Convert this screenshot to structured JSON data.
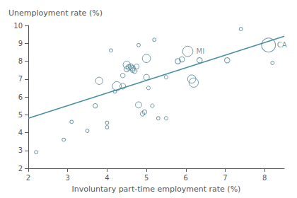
{
  "chart_data": {
    "type": "scatter",
    "xlabel": "Involuntary part-time employment rate (%)",
    "ylabel": "Unemployment rate (%)",
    "xlim": [
      2,
      8.5
    ],
    "ylim": [
      2,
      10
    ],
    "xticks": [
      2,
      3,
      4,
      5,
      6,
      7,
      8
    ],
    "yticks": [
      2,
      3,
      4,
      5,
      6,
      7,
      8,
      9,
      10
    ],
    "grid": false,
    "series": [
      {
        "type": "scatter",
        "marker": "circle",
        "color": "#4a8090",
        "x": [
          2.2,
          2.9,
          3.1,
          3.5,
          3.7,
          3.8,
          4.0,
          4.0,
          4.1,
          4.2,
          4.25,
          4.4,
          4.4,
          4.5,
          4.5,
          4.55,
          4.6,
          4.65,
          4.65,
          4.7,
          4.75,
          4.8,
          4.8,
          4.9,
          4.95,
          5.0,
          5.0,
          5.05,
          5.15,
          5.2,
          5.3,
          5.5,
          5.5,
          5.8,
          5.9,
          6.05,
          6.15,
          6.2,
          6.35,
          7.05,
          7.4,
          8.1,
          8.2
        ],
        "values": [
          2.9,
          3.6,
          4.6,
          4.1,
          5.5,
          6.9,
          4.55,
          4.3,
          8.6,
          6.3,
          6.6,
          6.6,
          7.2,
          7.8,
          7.55,
          7.65,
          7.7,
          7.6,
          7.5,
          7.45,
          7.7,
          8.9,
          5.55,
          5.05,
          5.15,
          7.1,
          8.15,
          6.5,
          5.5,
          9.2,
          4.8,
          7.1,
          4.8,
          8.0,
          8.1,
          8.55,
          7.0,
          6.8,
          8.05,
          8.05,
          9.8,
          8.9,
          7.9
        ],
        "sizes": [
          12,
          12,
          12,
          12,
          20,
          55,
          12,
          12,
          12,
          12,
          85,
          35,
          22,
          55,
          30,
          30,
          30,
          30,
          25,
          25,
          25,
          12,
          40,
          22,
          20,
          35,
          70,
          14,
          14,
          12,
          12,
          14,
          14,
          30,
          30,
          110,
          70,
          90,
          30,
          30,
          12,
          200,
          12
        ]
      },
      {
        "type": "line",
        "line_style": "solid",
        "color": "#4a8f9f",
        "x": [
          2.0,
          8.5
        ],
        "values": [
          4.8,
          9.4
        ]
      }
    ],
    "annotations": [
      {
        "text": "MI",
        "x": 6.05,
        "y": 8.55
      },
      {
        "text": "CA",
        "x": 8.1,
        "y": 8.9
      }
    ]
  }
}
